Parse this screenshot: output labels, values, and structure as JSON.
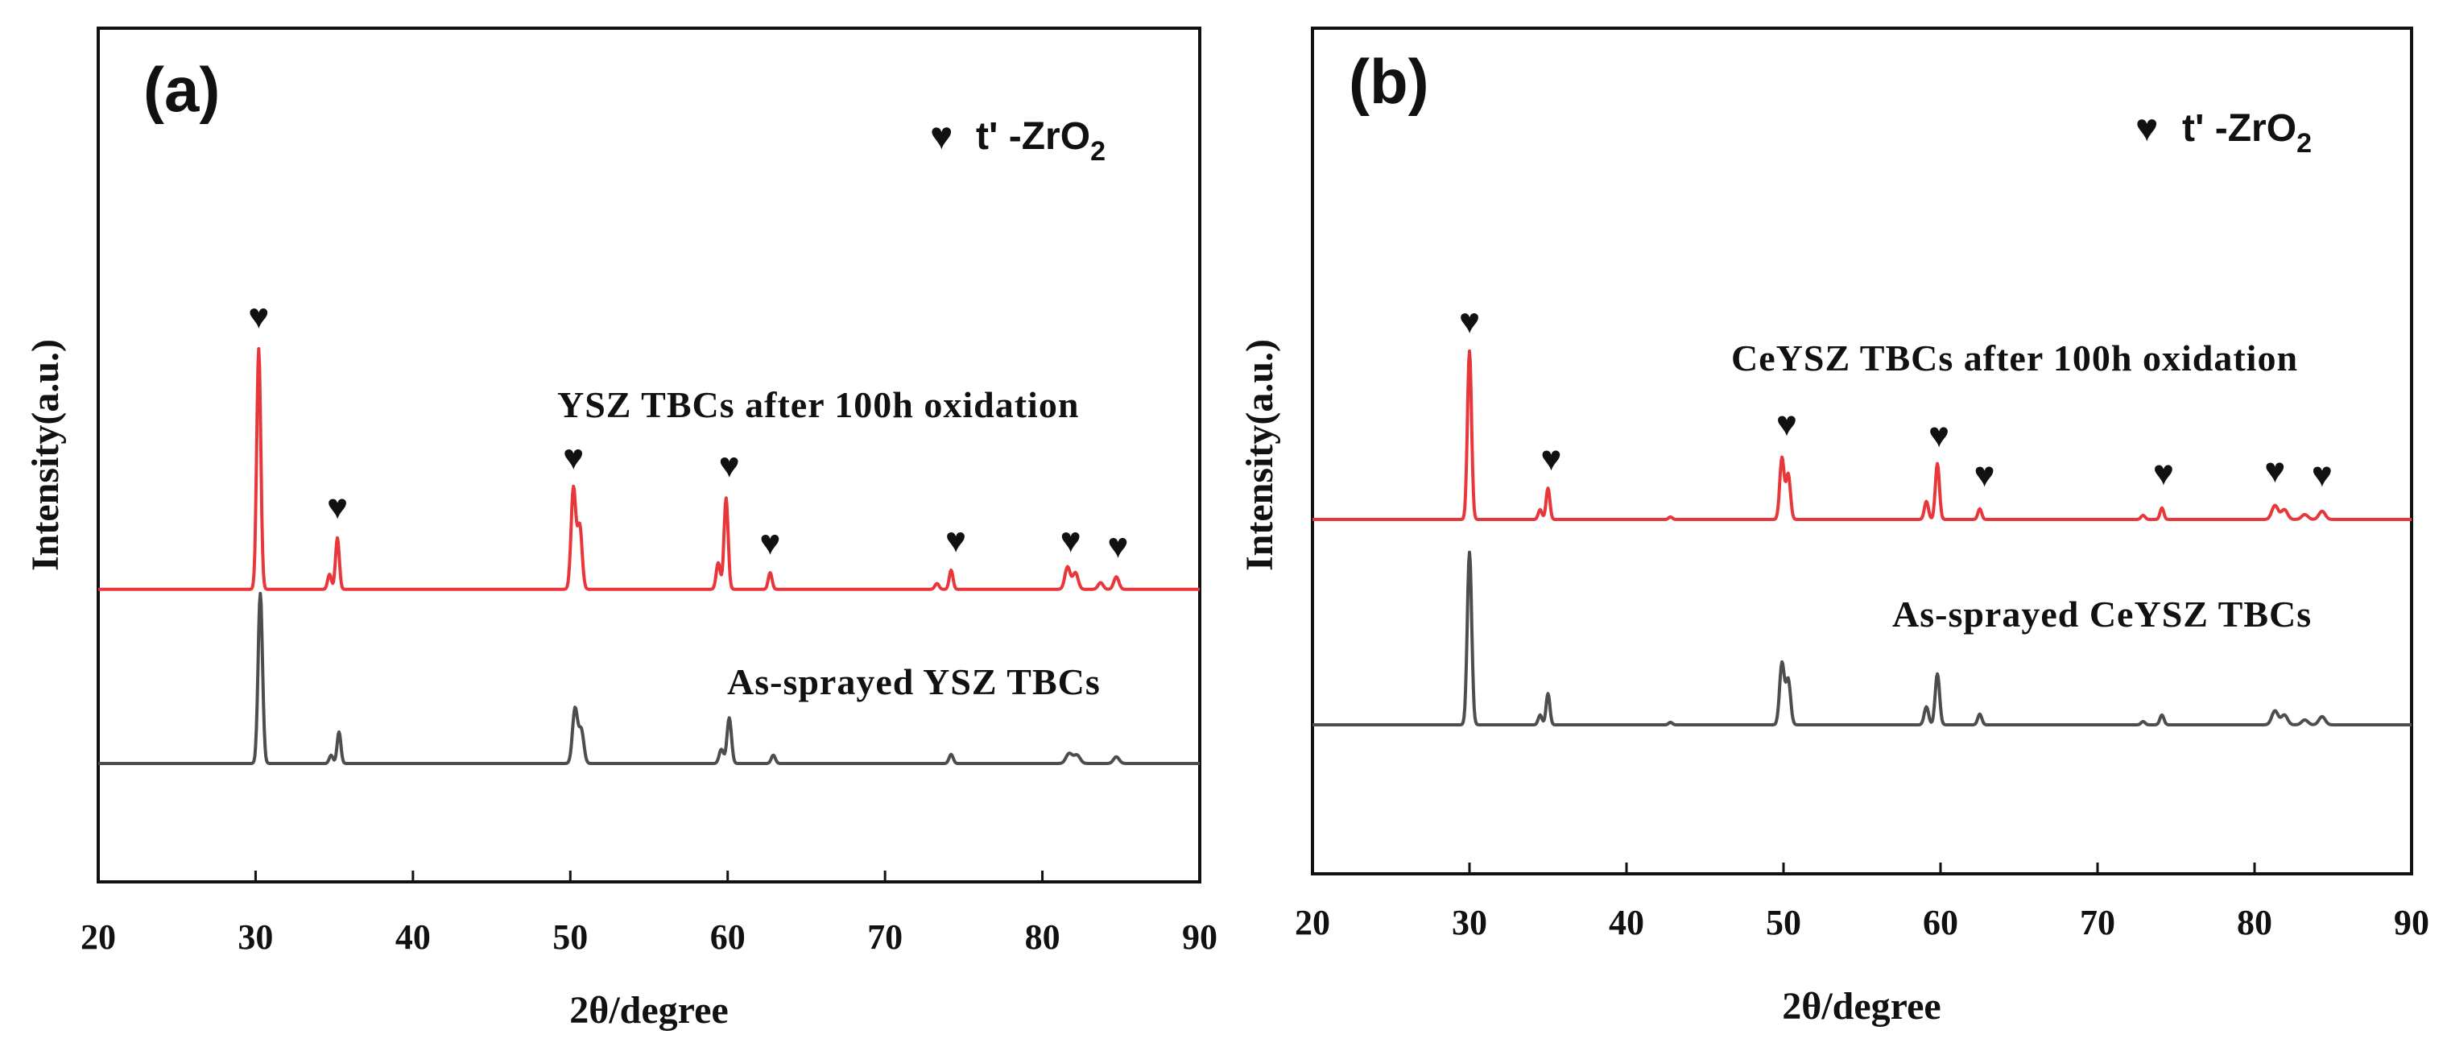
{
  "chart_data": [
    {
      "type": "line",
      "panel": "(a)",
      "xlabel": "2θ/degree",
      "ylabel": "Intensity(a.u.)",
      "xlim": [
        20,
        90
      ],
      "xticks": [
        20,
        30,
        40,
        50,
        60,
        70,
        80,
        90
      ],
      "legend": {
        "marker": "♥",
        "text": "t' -ZrO",
        "subscript": "2"
      },
      "series": [
        {
          "name": "YSZ TBCs after 100h oxidation",
          "color": "#e8373a",
          "offset": 2.1,
          "peaks": [
            {
              "x": 30.2,
              "h": 2.9,
              "w": 0.13
            },
            {
              "x": 34.7,
              "h": 0.18,
              "w": 0.12
            },
            {
              "x": 35.2,
              "h": 0.62,
              "w": 0.12
            },
            {
              "x": 50.2,
              "h": 1.22,
              "w": 0.15
            },
            {
              "x": 50.6,
              "h": 0.76,
              "w": 0.15
            },
            {
              "x": 59.4,
              "h": 0.32,
              "w": 0.13
            },
            {
              "x": 59.9,
              "h": 1.1,
              "w": 0.13
            },
            {
              "x": 62.7,
              "h": 0.2,
              "w": 0.12
            },
            {
              "x": 73.3,
              "h": 0.07,
              "w": 0.13
            },
            {
              "x": 74.2,
              "h": 0.23,
              "w": 0.12
            },
            {
              "x": 81.6,
              "h": 0.27,
              "w": 0.17
            },
            {
              "x": 82.1,
              "h": 0.2,
              "w": 0.17
            },
            {
              "x": 83.7,
              "h": 0.08,
              "w": 0.16
            },
            {
              "x": 84.7,
              "h": 0.15,
              "w": 0.16
            }
          ],
          "markers_x": [
            30.2,
            35.2,
            50.2,
            60.1,
            62.7,
            74.5,
            81.8,
            84.8
          ],
          "markers_y": [
            3.15,
            0.85,
            1.45,
            1.35,
            0.42,
            0.45,
            0.45,
            0.38
          ]
        },
        {
          "name": "As-sprayed YSZ TBCs",
          "color": "#4d4d4d",
          "offset": 0.0,
          "peaks": [
            {
              "x": 30.3,
              "h": 2.05,
              "w": 0.14
            },
            {
              "x": 34.8,
              "h": 0.1,
              "w": 0.12
            },
            {
              "x": 35.3,
              "h": 0.38,
              "w": 0.12
            },
            {
              "x": 50.3,
              "h": 0.66,
              "w": 0.16
            },
            {
              "x": 50.7,
              "h": 0.4,
              "w": 0.16
            },
            {
              "x": 59.6,
              "h": 0.17,
              "w": 0.14
            },
            {
              "x": 60.1,
              "h": 0.55,
              "w": 0.14
            },
            {
              "x": 62.9,
              "h": 0.1,
              "w": 0.13
            },
            {
              "x": 74.2,
              "h": 0.11,
              "w": 0.13
            },
            {
              "x": 81.7,
              "h": 0.12,
              "w": 0.2
            },
            {
              "x": 82.2,
              "h": 0.1,
              "w": 0.2
            },
            {
              "x": 84.7,
              "h": 0.08,
              "w": 0.18
            }
          ]
        }
      ]
    },
    {
      "type": "line",
      "panel": "(b)",
      "xlabel": "2θ/degree",
      "ylabel": "Intensity(a.u.)",
      "xlim": [
        20,
        90
      ],
      "xticks": [
        20,
        30,
        40,
        50,
        60,
        70,
        80,
        90
      ],
      "legend": {
        "marker": "♥",
        "text": "t' -ZrO",
        "subscript": "2"
      },
      "series": [
        {
          "name": "CeYSZ TBCs after 100h oxidation",
          "color": "#e8373a",
          "offset": 2.5,
          "peaks": [
            {
              "x": 30.0,
              "h": 2.05,
              "w": 0.13
            },
            {
              "x": 34.5,
              "h": 0.12,
              "w": 0.12
            },
            {
              "x": 35.0,
              "h": 0.38,
              "w": 0.12
            },
            {
              "x": 42.8,
              "h": 0.03,
              "w": 0.12
            },
            {
              "x": 49.9,
              "h": 0.75,
              "w": 0.14
            },
            {
              "x": 50.3,
              "h": 0.55,
              "w": 0.14
            },
            {
              "x": 59.1,
              "h": 0.22,
              "w": 0.13
            },
            {
              "x": 59.8,
              "h": 0.68,
              "w": 0.13
            },
            {
              "x": 62.5,
              "h": 0.13,
              "w": 0.12
            },
            {
              "x": 72.9,
              "h": 0.05,
              "w": 0.13
            },
            {
              "x": 74.1,
              "h": 0.14,
              "w": 0.12
            },
            {
              "x": 81.3,
              "h": 0.17,
              "w": 0.2
            },
            {
              "x": 81.9,
              "h": 0.12,
              "w": 0.2
            },
            {
              "x": 83.2,
              "h": 0.06,
              "w": 0.2
            },
            {
              "x": 84.3,
              "h": 0.1,
              "w": 0.2
            }
          ],
          "markers_x": [
            30.0,
            35.2,
            50.2,
            59.9,
            62.8,
            74.2,
            81.3,
            84.3
          ],
          "markers_y": [
            2.27,
            0.6,
            1.02,
            0.88,
            0.4,
            0.42,
            0.45,
            0.4
          ]
        },
        {
          "name": "As-sprayed CeYSZ TBCs",
          "color": "#4d4d4d",
          "offset": 0.0,
          "peaks": [
            {
              "x": 30.0,
              "h": 2.1,
              "w": 0.14
            },
            {
              "x": 34.5,
              "h": 0.12,
              "w": 0.12
            },
            {
              "x": 35.0,
              "h": 0.38,
              "w": 0.12
            },
            {
              "x": 42.8,
              "h": 0.03,
              "w": 0.12
            },
            {
              "x": 49.9,
              "h": 0.75,
              "w": 0.15
            },
            {
              "x": 50.3,
              "h": 0.55,
              "w": 0.15
            },
            {
              "x": 59.1,
              "h": 0.22,
              "w": 0.14
            },
            {
              "x": 59.8,
              "h": 0.62,
              "w": 0.14
            },
            {
              "x": 62.5,
              "h": 0.13,
              "w": 0.13
            },
            {
              "x": 72.9,
              "h": 0.04,
              "w": 0.13
            },
            {
              "x": 74.1,
              "h": 0.12,
              "w": 0.13
            },
            {
              "x": 81.3,
              "h": 0.17,
              "w": 0.2
            },
            {
              "x": 81.9,
              "h": 0.12,
              "w": 0.2
            },
            {
              "x": 83.2,
              "h": 0.06,
              "w": 0.2
            },
            {
              "x": 84.3,
              "h": 0.1,
              "w": 0.2
            }
          ]
        }
      ]
    }
  ]
}
